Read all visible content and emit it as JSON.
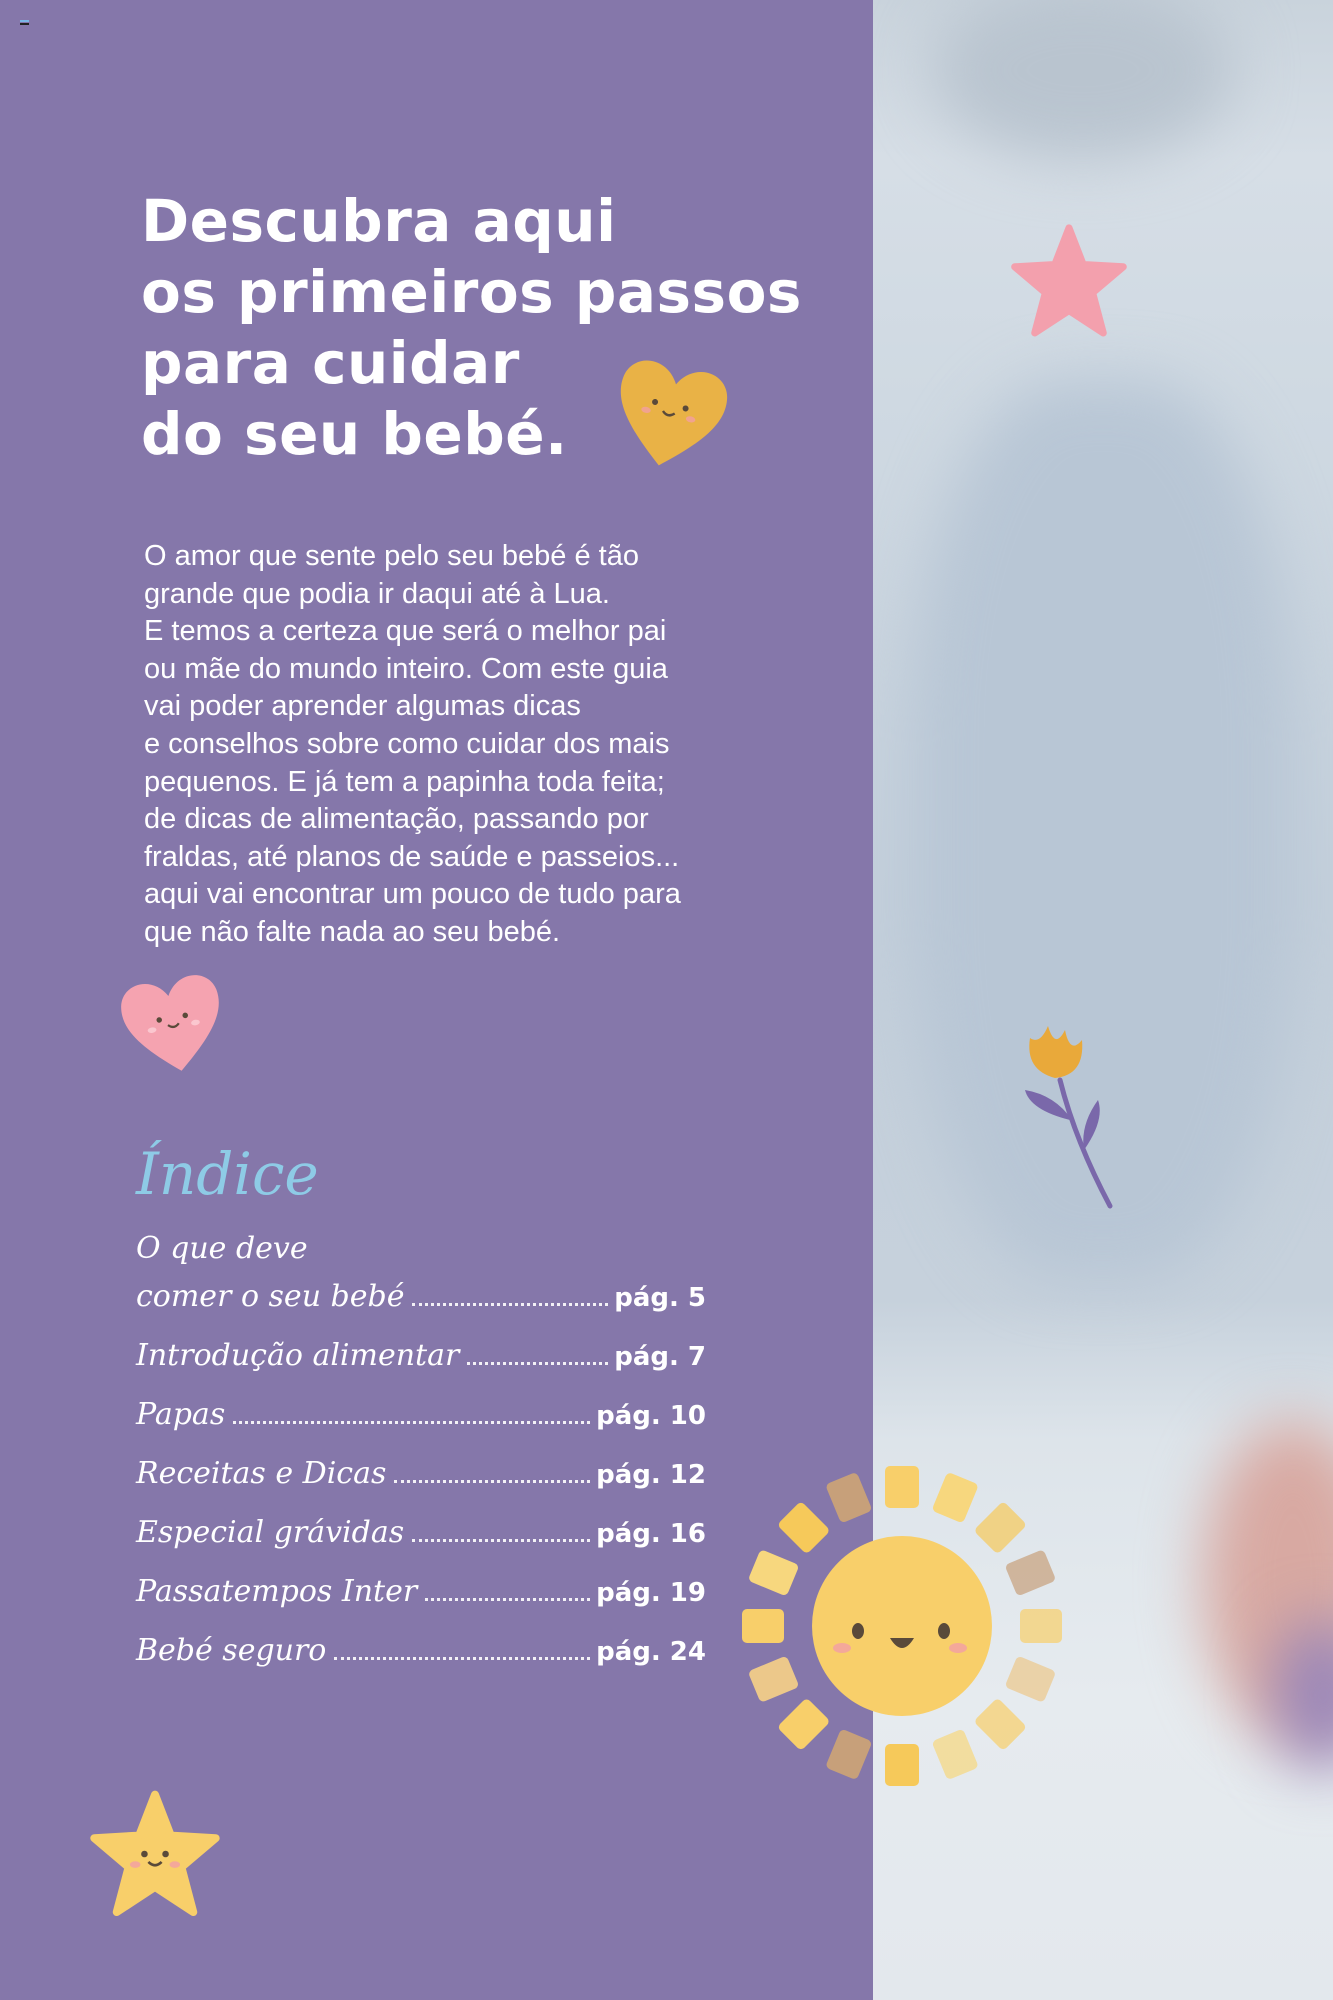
{
  "headline": {
    "lines": [
      "Descubra aqui",
      "os primeiros passos",
      "para cuidar",
      "do seu bebé."
    ]
  },
  "intro": {
    "lines": [
      "O amor que sente pelo seu bebé é tão",
      "grande que podia ir daqui até à Lua.",
      "E temos a certeza que será o melhor pai",
      "ou mãe do mundo inteiro. Com este guia",
      "vai poder aprender algumas dicas",
      "e conselhos sobre como cuidar dos mais",
      "pequenos. E já tem a papinha toda feita;",
      "de dicas de alimentação, passando por",
      "fraldas, até planos de saúde e passeios...",
      "aqui vai encontrar um pouco de tudo para",
      "que não falte nada ao seu bebé."
    ]
  },
  "index": {
    "title": "Índice",
    "first_line": "O que deve",
    "entries": [
      {
        "label": "comer o seu bebé",
        "page": "pág. 5"
      },
      {
        "label": "Introdução alimentar",
        "page": "pág. 7"
      },
      {
        "label": "Papas",
        "page": "pág. 10"
      },
      {
        "label": "Receitas e Dicas",
        "page": "pág. 12"
      },
      {
        "label": "Especial grávidas",
        "page": "pág. 16"
      },
      {
        "label": "Passatempos Inter",
        "page": "pág. 19"
      },
      {
        "label": "Bebé seguro",
        "page": "pág. 24"
      }
    ]
  },
  "colors": {
    "panel": "#8577aa",
    "index_title": "#8ecbe6",
    "yellow": "#f8cf6a",
    "pink": "#f5a3b0",
    "mustard": "#e9b246"
  },
  "icons": [
    "heart-face-icon",
    "star-icon",
    "flower-icon",
    "sun-face-icon"
  ]
}
